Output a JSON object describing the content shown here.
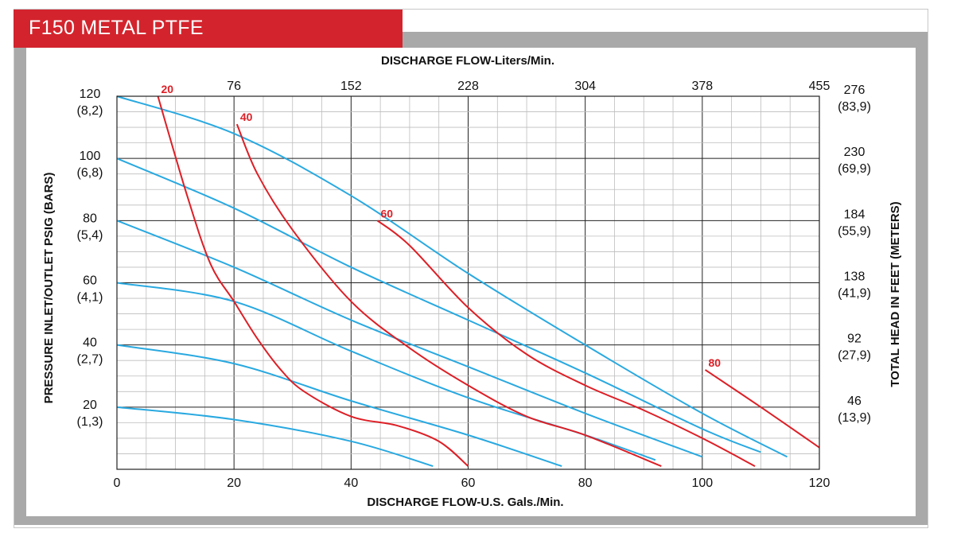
{
  "header": {
    "title": "F150 METAL PTFE"
  },
  "chart_data": {
    "type": "line",
    "title": "",
    "xlabel": "DISCHARGE FLOW-U.S. Gals./Min.",
    "x2label": "DISCHARGE FLOW-Liters/Min.",
    "ylabel": "PRESSURE INLET/OUTLET PSIG (BARS)",
    "y2label": "TOTAL HEAD IN FEET (METERS)",
    "xlim": [
      0,
      120
    ],
    "ylim": [
      0,
      120
    ],
    "grid": true,
    "x_ticks": [
      {
        "value": 0,
        "label": "0"
      },
      {
        "value": 20,
        "label": "20"
      },
      {
        "value": 40,
        "label": "40"
      },
      {
        "value": 60,
        "label": "60"
      },
      {
        "value": 80,
        "label": "80"
      },
      {
        "value": 100,
        "label": "100"
      },
      {
        "value": 120,
        "label": "120"
      }
    ],
    "x2_ticks": [
      {
        "value": 20,
        "label": "76"
      },
      {
        "value": 40,
        "label": "152"
      },
      {
        "value": 60,
        "label": "228"
      },
      {
        "value": 80,
        "label": "304"
      },
      {
        "value": 100,
        "label": "378"
      },
      {
        "value": 120,
        "label": "455"
      }
    ],
    "y_ticks": [
      {
        "value": 120,
        "label": "120",
        "sub": "(8,2)"
      },
      {
        "value": 100,
        "label": "100",
        "sub": "(6,8)"
      },
      {
        "value": 80,
        "label": "80",
        "sub": "(5,4)"
      },
      {
        "value": 60,
        "label": "60",
        "sub": "(4,1)"
      },
      {
        "value": 40,
        "label": "40",
        "sub": "(2,7)"
      },
      {
        "value": 20,
        "label": "20",
        "sub": "(1,3)"
      }
    ],
    "y2_ticks": [
      {
        "value": 120,
        "label": "276",
        "sub": "(83,9)"
      },
      {
        "value": 100,
        "label": "230",
        "sub": "(69,9)"
      },
      {
        "value": 80,
        "label": "184",
        "sub": "(55,9)"
      },
      {
        "value": 60,
        "label": "138",
        "sub": "(41,9)"
      },
      {
        "value": 40,
        "label": "92",
        "sub": "(27,9)"
      },
      {
        "value": 20,
        "label": "46",
        "sub": "(13,9)"
      }
    ],
    "colors": {
      "pressure": "#29a9e0",
      "air": "#dd1f26",
      "grid": "#bdbdbd",
      "grid_major": "#222222"
    },
    "pressure_curves": [
      {
        "points": [
          [
            0,
            120
          ],
          [
            20,
            108
          ],
          [
            40,
            88
          ],
          [
            60,
            63
          ],
          [
            80,
            40
          ],
          [
            100,
            18
          ],
          [
            114.5,
            4
          ]
        ]
      },
      {
        "points": [
          [
            0,
            100
          ],
          [
            20,
            84
          ],
          [
            40,
            65
          ],
          [
            60,
            48
          ],
          [
            80,
            31
          ],
          [
            100,
            13
          ],
          [
            110,
            5.5
          ]
        ]
      },
      {
        "points": [
          [
            0,
            80
          ],
          [
            20,
            65
          ],
          [
            40,
            48
          ],
          [
            60,
            33
          ],
          [
            80,
            18
          ],
          [
            100,
            4
          ]
        ]
      },
      {
        "points": [
          [
            0,
            60
          ],
          [
            20,
            54
          ],
          [
            40,
            38
          ],
          [
            60,
            23
          ],
          [
            80,
            11
          ],
          [
            92,
            3
          ]
        ]
      },
      {
        "points": [
          [
            0,
            40
          ],
          [
            20,
            34
          ],
          [
            40,
            22
          ],
          [
            60,
            11
          ],
          [
            76,
            1
          ]
        ]
      },
      {
        "points": [
          [
            0,
            20
          ],
          [
            20,
            16
          ],
          [
            40,
            9
          ],
          [
            54,
            1
          ]
        ]
      }
    ],
    "air_curves": [
      {
        "label": "20",
        "points": [
          [
            7,
            120
          ],
          [
            12,
            88
          ],
          [
            16,
            66
          ],
          [
            20,
            54
          ],
          [
            24,
            42
          ],
          [
            28,
            32
          ],
          [
            32,
            25
          ],
          [
            40,
            17
          ],
          [
            48,
            14
          ],
          [
            55,
            9
          ],
          [
            60,
            1
          ]
        ]
      },
      {
        "label": "40",
        "points": [
          [
            20.5,
            111
          ],
          [
            24,
            95
          ],
          [
            30,
            77
          ],
          [
            40,
            54
          ],
          [
            50,
            39
          ],
          [
            60,
            27
          ],
          [
            70,
            17
          ],
          [
            80,
            11
          ],
          [
            93,
            1
          ]
        ]
      },
      {
        "label": "60",
        "points": [
          [
            44.5,
            80
          ],
          [
            50,
            72
          ],
          [
            60,
            52
          ],
          [
            70,
            37
          ],
          [
            80,
            27
          ],
          [
            90,
            19
          ],
          [
            100,
            10
          ],
          [
            109,
            1
          ]
        ]
      },
      {
        "label": "80",
        "points": [
          [
            100.5,
            32
          ],
          [
            110,
            20
          ],
          [
            120,
            7
          ]
        ]
      }
    ]
  }
}
